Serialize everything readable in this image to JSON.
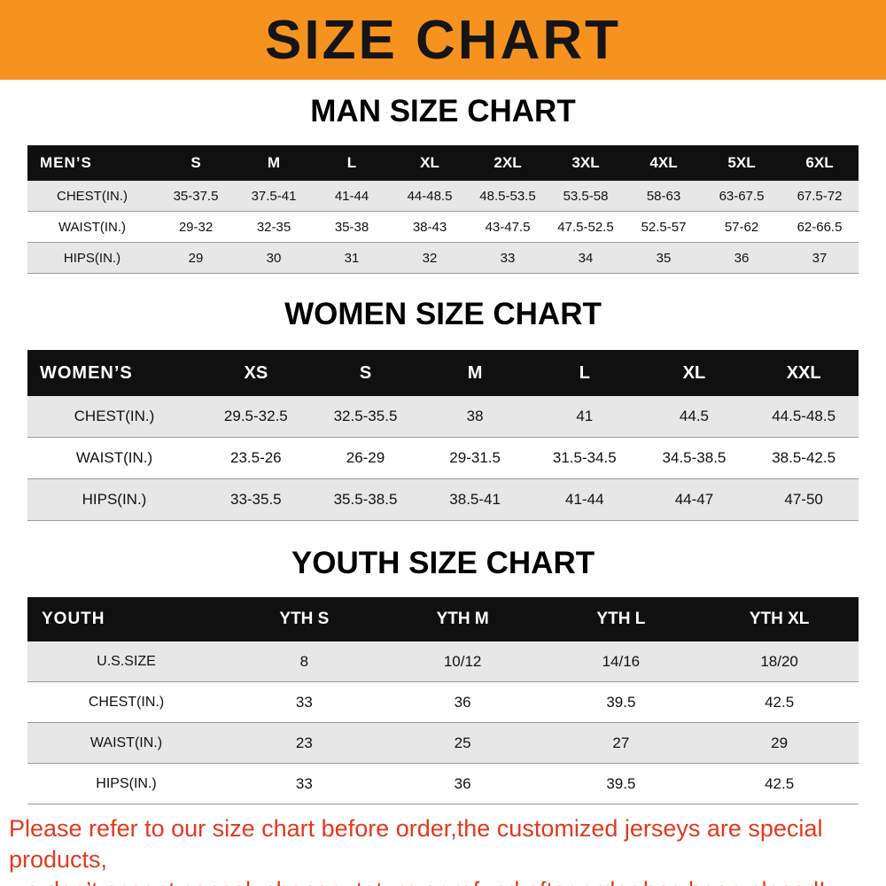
{
  "banner": {
    "title": "SIZE CHART"
  },
  "colors": {
    "banner_orange": "#F6921E",
    "table_header_black": "#101010",
    "row_stripe_gray": "#e7e7e7",
    "footer_red": "#e2391f"
  },
  "sections": {
    "men": {
      "heading": "MAN SIZE CHART",
      "table": {
        "header": [
          "MEN’S",
          "S",
          "M",
          "L",
          "XL",
          "2XL",
          "3XL",
          "4XL",
          "5XL",
          "6XL"
        ],
        "rows": [
          [
            "CHEST(IN.)",
            "35-37.5",
            "37.5-41",
            "41-44",
            "44-48.5",
            "48.5-53.5",
            "53.5-58",
            "58-63",
            "63-67.5",
            "67.5-72"
          ],
          [
            "WAIST(IN.)",
            "29-32",
            "32-35",
            "35-38",
            "38-43",
            "43-47.5",
            "47.5-52.5",
            "52.5-57",
            "57-62",
            "62-66.5"
          ],
          [
            "HIPS(IN.)",
            "29",
            "30",
            "31",
            "32",
            "33",
            "34",
            "35",
            "36",
            "37"
          ]
        ]
      }
    },
    "women": {
      "heading": "WOMEN SIZE CHART",
      "table": {
        "header": [
          "WOMEN’S",
          "XS",
          "S",
          "M",
          "L",
          "XL",
          "XXL"
        ],
        "rows": [
          [
            "CHEST(IN.)",
            "29.5-32.5",
            "32.5-35.5",
            "38",
            "41",
            "44.5",
            "44.5-48.5"
          ],
          [
            "WAIST(IN.)",
            "23.5-26",
            "26-29",
            "29-31.5",
            "31.5-34.5",
            "34.5-38.5",
            "38.5-42.5"
          ],
          [
            "HIPS(IN.)",
            "33-35.5",
            "35.5-38.5",
            "38.5-41",
            "41-44",
            "44-47",
            "47-50"
          ]
        ]
      }
    },
    "youth": {
      "heading": "YOUTH SIZE CHART",
      "table": {
        "header": [
          "YOUTH",
          "YTH S",
          "YTH M",
          "YTH L",
          "YTH XL"
        ],
        "rows": [
          [
            "U.S.SIZE",
            "8",
            "10/12",
            "14/16",
            "18/20"
          ],
          [
            "CHEST(IN.)",
            "33",
            "36",
            "39.5",
            "42.5"
          ],
          [
            "WAIST(IN.)",
            "23",
            "25",
            "27",
            "29"
          ],
          [
            "HIPS(IN.)",
            "33",
            "36",
            "39.5",
            "42.5"
          ]
        ]
      }
    }
  },
  "footer": {
    "line1": "Please refer to our size chart before order,the customized jerseys are special products,",
    "line2": "we don’t accept cancel, change, teturn or refund after order has been placed!"
  }
}
